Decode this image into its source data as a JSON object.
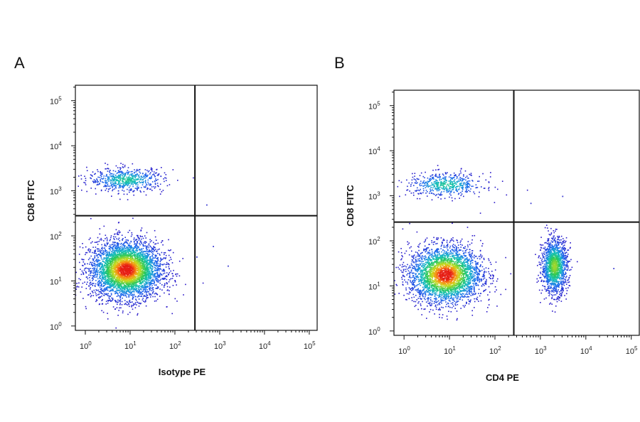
{
  "chart_data": [
    {
      "type": "scatter",
      "panel_label": "A",
      "xlabel": "Isotype PE",
      "ylabel": "CD8 FITC",
      "x_scale": "log",
      "y_scale": "log",
      "xlim": [
        0.6,
        150000
      ],
      "ylim": [
        0.8,
        220000
      ],
      "x_ticks": [
        1,
        10,
        100,
        1000,
        10000,
        100000
      ],
      "y_ticks": [
        1,
        10,
        100,
        1000,
        10000,
        100000
      ],
      "tick_base": "10",
      "tick_exponents": [
        "0",
        "1",
        "2",
        "3",
        "4",
        "5"
      ],
      "quadrant_gate": {
        "x": 280,
        "y": 280
      },
      "grid": false,
      "color_scheme": "density (blue → green → yellow → red)",
      "populations": [
        {
          "x_center": 8,
          "y_center": 18,
          "relative_size": 0.8
        },
        {
          "x_center": 8,
          "y_center": 1800,
          "relative_size": 0.12
        }
      ],
      "sparse_events": [
        {
          "x": 500,
          "y": 500
        },
        {
          "x": 700,
          "y": 60
        },
        {
          "x": 1500,
          "y": 22
        },
        {
          "x": 300,
          "y": 35
        }
      ]
    },
    {
      "type": "scatter",
      "panel_label": "B",
      "xlabel": "CD4 PE",
      "ylabel": "CD8 FITC",
      "x_scale": "log",
      "y_scale": "log",
      "xlim": [
        0.6,
        150000
      ],
      "ylim": [
        0.8,
        220000
      ],
      "x_ticks": [
        1,
        10,
        100,
        1000,
        10000,
        100000
      ],
      "y_ticks": [
        1,
        10,
        100,
        1000,
        10000,
        100000
      ],
      "tick_base": "10",
      "tick_exponents": [
        "0",
        "1",
        "2",
        "3",
        "4",
        "5"
      ],
      "quadrant_gate": {
        "x": 260,
        "y": 260
      },
      "grid": false,
      "color_scheme": "density (blue → green → yellow → red)",
      "populations": [
        {
          "x_center": 8,
          "y_center": 18,
          "relative_size": 0.62
        },
        {
          "x_center": 8,
          "y_center": 1800,
          "relative_size": 0.1
        },
        {
          "x_center": 2000,
          "y_center": 28,
          "relative_size": 0.28
        }
      ],
      "sparse_events": [
        {
          "x": 3000,
          "y": 1000
        },
        {
          "x": 40000,
          "y": 25
        },
        {
          "x": 600,
          "y": 700
        }
      ]
    }
  ]
}
